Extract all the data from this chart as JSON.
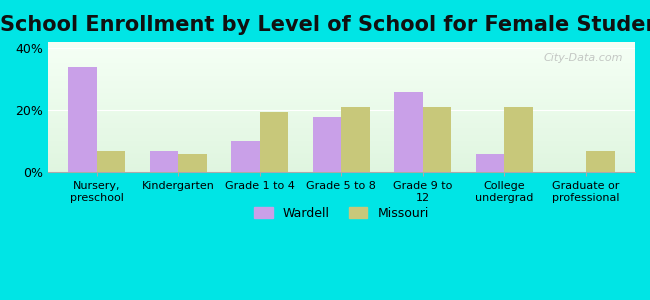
{
  "title": "School Enrollment by Level of School for Female Students",
  "categories": [
    "Nursery,\npreschool",
    "Kindergarten",
    "Grade 1 to 4",
    "Grade 5 to 8",
    "Grade 9 to\n12",
    "College\nundergrad",
    "Graduate or\nprofessional"
  ],
  "wardell": [
    34,
    7,
    10,
    18,
    26,
    6,
    0
  ],
  "missouri": [
    7,
    6,
    19.5,
    21,
    21,
    21,
    7
  ],
  "wardell_color": "#c9a0e8",
  "missouri_color": "#c8c87a",
  "background_outer": "#00e5e5",
  "background_inner_top": "#f0fff0",
  "background_inner_bottom": "#e8ffe8",
  "title_fontsize": 15,
  "ylabel_ticks": [
    "0%",
    "20%",
    "40%"
  ],
  "yticks": [
    0,
    20,
    40
  ],
  "ylim": [
    0,
    42
  ],
  "legend_labels": [
    "Wardell",
    "Missouri"
  ],
  "bar_width": 0.35,
  "watermark": "City-Data.com"
}
